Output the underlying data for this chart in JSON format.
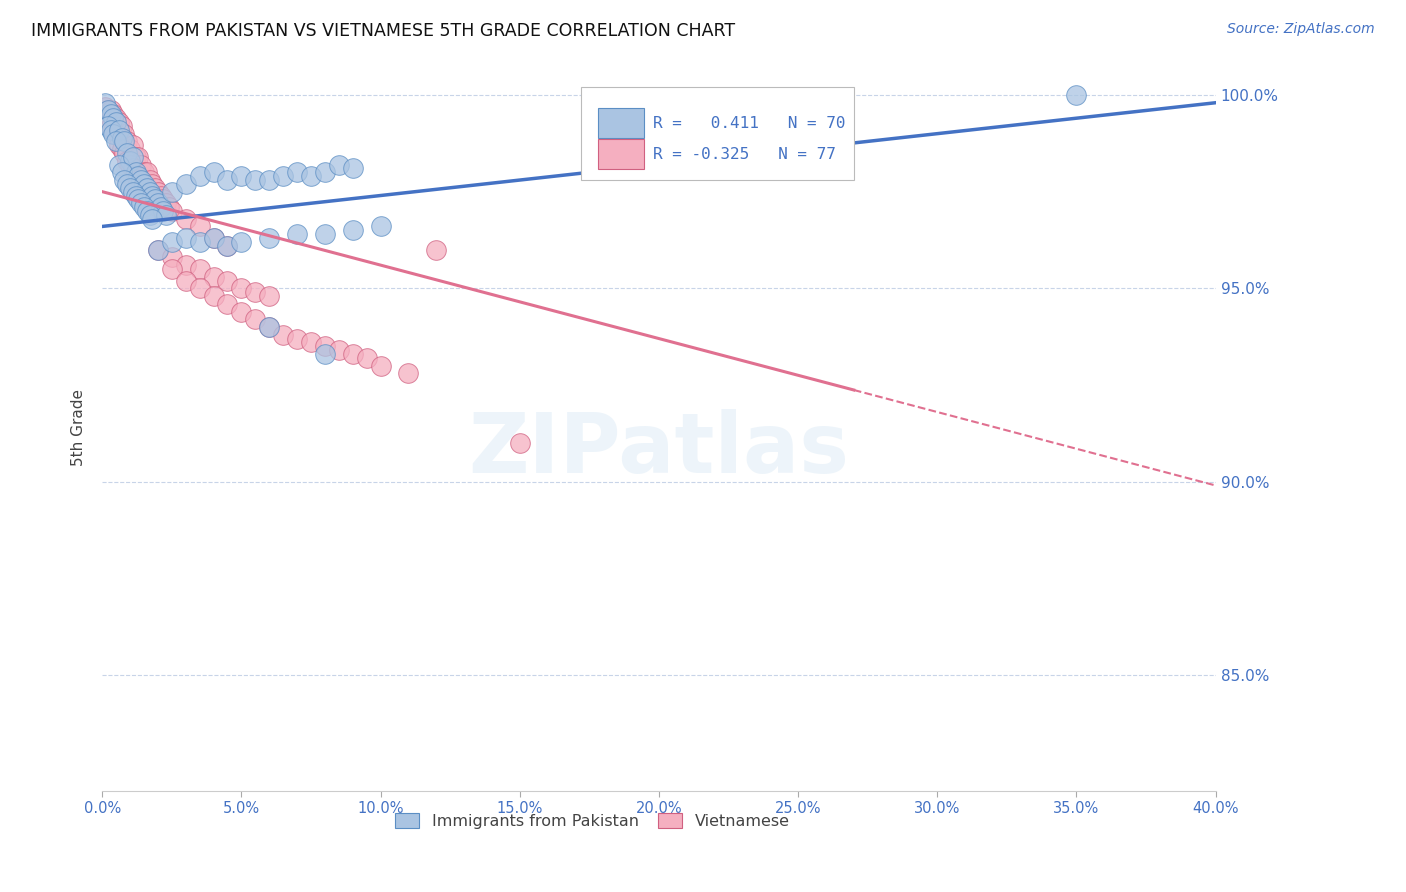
{
  "title": "IMMIGRANTS FROM PAKISTAN VS VIETNAMESE 5TH GRADE CORRELATION CHART",
  "source": "Source: ZipAtlas.com",
  "ylabel": "5th Grade",
  "xlim": [
    0.0,
    0.4
  ],
  "ylim": [
    0.82,
    1.008
  ],
  "yticks": [
    0.85,
    0.9,
    0.95,
    1.0
  ],
  "ytick_labels": [
    "85.0%",
    "90.0%",
    "95.0%",
    "100.0%"
  ],
  "pakistan_color": "#aac4e2",
  "pakistan_edge_color": "#5b8ec4",
  "vietnamese_color": "#f5afc0",
  "vietnamese_edge_color": "#d06080",
  "pakistan_line_color": "#4472c4",
  "vietnamese_line_color": "#e07090",
  "pakistan_R": 0.411,
  "pakistan_N": 70,
  "vietnamese_R": -0.325,
  "vietnamese_N": 77,
  "pak_trend_x0": 0.0,
  "pak_trend_y0": 0.966,
  "pak_trend_x1": 0.4,
  "pak_trend_y1": 0.998,
  "vie_trend_x0": 0.0,
  "vie_trend_y0": 0.975,
  "vie_trend_x1": 0.4,
  "vie_trend_y1": 0.899,
  "pakistan_points": [
    [
      0.001,
      0.998
    ],
    [
      0.002,
      0.996
    ],
    [
      0.003,
      0.995
    ],
    [
      0.004,
      0.994
    ],
    [
      0.005,
      0.993
    ],
    [
      0.002,
      0.992
    ],
    [
      0.003,
      0.991
    ],
    [
      0.004,
      0.99
    ],
    [
      0.006,
      0.991
    ],
    [
      0.007,
      0.989
    ],
    [
      0.005,
      0.988
    ],
    [
      0.008,
      0.988
    ],
    [
      0.009,
      0.985
    ],
    [
      0.01,
      0.983
    ],
    [
      0.006,
      0.982
    ],
    [
      0.011,
      0.984
    ],
    [
      0.012,
      0.98
    ],
    [
      0.007,
      0.98
    ],
    [
      0.013,
      0.979
    ],
    [
      0.008,
      0.978
    ],
    [
      0.014,
      0.978
    ],
    [
      0.009,
      0.977
    ],
    [
      0.015,
      0.977
    ],
    [
      0.01,
      0.976
    ],
    [
      0.016,
      0.976
    ],
    [
      0.017,
      0.975
    ],
    [
      0.011,
      0.975
    ],
    [
      0.012,
      0.974
    ],
    [
      0.018,
      0.974
    ],
    [
      0.013,
      0.973
    ],
    [
      0.019,
      0.973
    ],
    [
      0.014,
      0.972
    ],
    [
      0.02,
      0.972
    ],
    [
      0.015,
      0.971
    ],
    [
      0.021,
      0.971
    ],
    [
      0.016,
      0.97
    ],
    [
      0.022,
      0.97
    ],
    [
      0.017,
      0.969
    ],
    [
      0.023,
      0.969
    ],
    [
      0.018,
      0.968
    ],
    [
      0.025,
      0.975
    ],
    [
      0.03,
      0.977
    ],
    [
      0.035,
      0.979
    ],
    [
      0.04,
      0.98
    ],
    [
      0.045,
      0.978
    ],
    [
      0.05,
      0.979
    ],
    [
      0.055,
      0.978
    ],
    [
      0.06,
      0.978
    ],
    [
      0.065,
      0.979
    ],
    [
      0.07,
      0.98
    ],
    [
      0.075,
      0.979
    ],
    [
      0.08,
      0.98
    ],
    [
      0.085,
      0.982
    ],
    [
      0.09,
      0.981
    ],
    [
      0.02,
      0.96
    ],
    [
      0.025,
      0.962
    ],
    [
      0.03,
      0.963
    ],
    [
      0.035,
      0.962
    ],
    [
      0.04,
      0.963
    ],
    [
      0.045,
      0.961
    ],
    [
      0.05,
      0.962
    ],
    [
      0.06,
      0.963
    ],
    [
      0.07,
      0.964
    ],
    [
      0.08,
      0.964
    ],
    [
      0.09,
      0.965
    ],
    [
      0.1,
      0.966
    ],
    [
      0.06,
      0.94
    ],
    [
      0.08,
      0.933
    ],
    [
      0.35,
      1.0
    ]
  ],
  "vietnamese_points": [
    [
      0.001,
      0.997
    ],
    [
      0.002,
      0.996
    ],
    [
      0.003,
      0.996
    ],
    [
      0.004,
      0.995
    ],
    [
      0.005,
      0.994
    ],
    [
      0.002,
      0.993
    ],
    [
      0.003,
      0.992
    ],
    [
      0.006,
      0.993
    ],
    [
      0.007,
      0.992
    ],
    [
      0.004,
      0.991
    ],
    [
      0.008,
      0.99
    ],
    [
      0.005,
      0.99
    ],
    [
      0.009,
      0.988
    ],
    [
      0.01,
      0.986
    ],
    [
      0.006,
      0.987
    ],
    [
      0.011,
      0.987
    ],
    [
      0.007,
      0.986
    ],
    [
      0.012,
      0.984
    ],
    [
      0.008,
      0.985
    ],
    [
      0.013,
      0.984
    ],
    [
      0.009,
      0.983
    ],
    [
      0.014,
      0.982
    ],
    [
      0.01,
      0.982
    ],
    [
      0.015,
      0.98
    ],
    [
      0.011,
      0.981
    ],
    [
      0.016,
      0.98
    ],
    [
      0.012,
      0.979
    ],
    [
      0.017,
      0.978
    ],
    [
      0.013,
      0.978
    ],
    [
      0.018,
      0.977
    ],
    [
      0.014,
      0.977
    ],
    [
      0.019,
      0.976
    ],
    [
      0.015,
      0.976
    ],
    [
      0.02,
      0.975
    ],
    [
      0.016,
      0.975
    ],
    [
      0.021,
      0.974
    ],
    [
      0.017,
      0.974
    ],
    [
      0.022,
      0.973
    ],
    [
      0.018,
      0.973
    ],
    [
      0.023,
      0.972
    ],
    [
      0.019,
      0.972
    ],
    [
      0.024,
      0.971
    ],
    [
      0.02,
      0.971
    ],
    [
      0.025,
      0.97
    ],
    [
      0.03,
      0.968
    ],
    [
      0.035,
      0.966
    ],
    [
      0.04,
      0.963
    ],
    [
      0.045,
      0.961
    ],
    [
      0.02,
      0.96
    ],
    [
      0.025,
      0.958
    ],
    [
      0.03,
      0.956
    ],
    [
      0.035,
      0.955
    ],
    [
      0.04,
      0.953
    ],
    [
      0.045,
      0.952
    ],
    [
      0.05,
      0.95
    ],
    [
      0.055,
      0.949
    ],
    [
      0.06,
      0.948
    ],
    [
      0.025,
      0.955
    ],
    [
      0.03,
      0.952
    ],
    [
      0.035,
      0.95
    ],
    [
      0.04,
      0.948
    ],
    [
      0.045,
      0.946
    ],
    [
      0.05,
      0.944
    ],
    [
      0.055,
      0.942
    ],
    [
      0.06,
      0.94
    ],
    [
      0.065,
      0.938
    ],
    [
      0.07,
      0.937
    ],
    [
      0.075,
      0.936
    ],
    [
      0.08,
      0.935
    ],
    [
      0.085,
      0.934
    ],
    [
      0.09,
      0.933
    ],
    [
      0.095,
      0.932
    ],
    [
      0.1,
      0.93
    ],
    [
      0.11,
      0.928
    ],
    [
      0.12,
      0.96
    ],
    [
      0.15,
      0.91
    ]
  ]
}
